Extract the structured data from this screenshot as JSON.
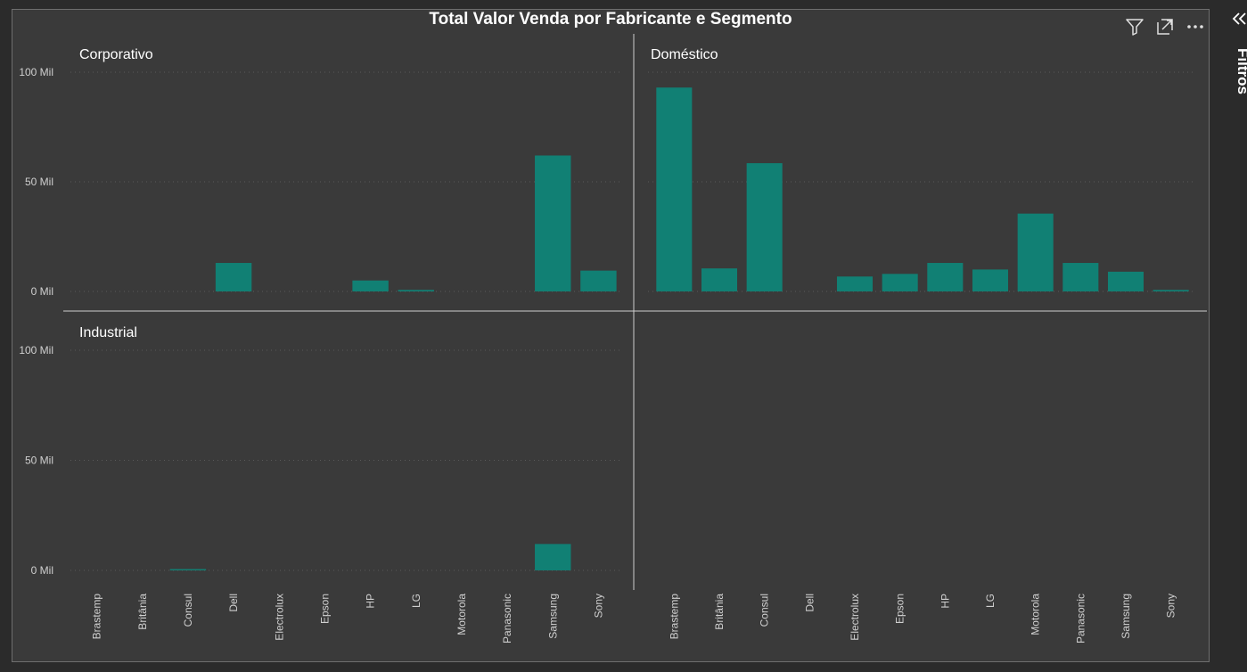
{
  "header": {
    "title": "Total Valor Venda por Fabricante e Segmento",
    "icons": [
      "filter-icon",
      "focus-mode-icon",
      "more-options-icon"
    ]
  },
  "filters_pane": {
    "label": "Filtros",
    "icon": "collapse-chevrons-icon"
  },
  "colors": {
    "bar": "#118074",
    "background": "#3a3a3a",
    "text": "#ffffff",
    "axis_text": "#d0d0d0",
    "divider": "#cfcfcf",
    "gridline": "#5a5a5a"
  },
  "chart_data": {
    "type": "bar",
    "title": "Total Valor Venda por Fabricante e Segmento",
    "small_multiples": true,
    "categories": [
      "Brastemp",
      "Britânia",
      "Consul",
      "Dell",
      "Electrolux",
      "Epson",
      "HP",
      "LG",
      "Motorola",
      "Panasonic",
      "Samsung",
      "Sony"
    ],
    "yticks": [
      "0 Mil",
      "50 Mil",
      "100 Mil"
    ],
    "ylim": [
      0,
      100000
    ],
    "grid": true,
    "series": [
      {
        "name": "Corporativo",
        "values": [
          0,
          0,
          0,
          13000,
          0,
          0,
          5000,
          700,
          0,
          0,
          62000,
          9500
        ]
      },
      {
        "name": "Doméstico",
        "values": [
          93000,
          10500,
          58500,
          0,
          6800,
          8000,
          13000,
          10000,
          35500,
          13000,
          9000,
          700
        ]
      },
      {
        "name": "Industrial",
        "values": [
          0,
          0,
          600,
          0,
          0,
          0,
          0,
          0,
          0,
          0,
          12000,
          0
        ]
      }
    ]
  }
}
